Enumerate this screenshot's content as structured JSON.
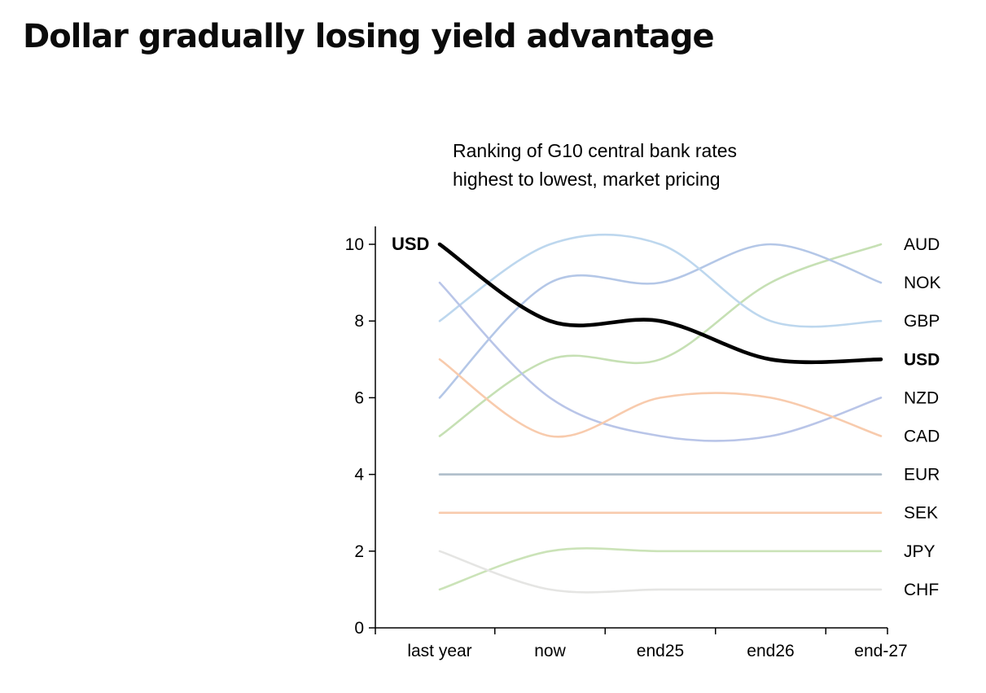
{
  "page": {
    "title": "Dollar gradually losing yield advantage",
    "background_color": "#ffffff"
  },
  "chart": {
    "subtitle": [
      "Ranking of G10 central bank rates",
      "highest to lowest, market pricing"
    ]
  },
  "chart_data": {
    "type": "line",
    "title": "Ranking of G10 central bank rates highest to lowest, market pricing",
    "categories": [
      "last year",
      "now",
      "end25",
      "end26",
      "end-27"
    ],
    "xlabel": "",
    "ylabel": "",
    "ylim": [
      0,
      10
    ],
    "yticks": [
      0,
      2,
      4,
      6,
      8,
      10
    ],
    "grid": false,
    "line_style": "smooth",
    "legend_position": "end-of-line-labels-right",
    "axis_color": "#000000",
    "series": [
      {
        "name": "USD",
        "values": [
          10,
          8,
          8,
          7,
          7
        ],
        "color": "#000000",
        "emphasis": true,
        "label_left": true,
        "label_right": true
      },
      {
        "name": "AUD",
        "values": [
          5,
          7,
          7,
          9,
          10
        ],
        "color": "#c6e0b4",
        "emphasis": false,
        "label_left": false,
        "label_right": true
      },
      {
        "name": "NOK",
        "values": [
          6,
          9,
          9,
          10,
          9
        ],
        "color": "#b4c7e7",
        "emphasis": false,
        "label_left": false,
        "label_right": true
      },
      {
        "name": "GBP",
        "values": [
          8,
          10,
          10,
          8,
          8
        ],
        "color": "#bdd7ee",
        "emphasis": false,
        "label_left": false,
        "label_right": true
      },
      {
        "name": "NZD",
        "values": [
          9,
          6,
          5,
          5,
          6
        ],
        "color": "#b9c5e8",
        "emphasis": false,
        "label_left": false,
        "label_right": true
      },
      {
        "name": "CAD",
        "values": [
          7,
          5,
          6,
          6,
          5
        ],
        "color": "#f8cbad",
        "emphasis": false,
        "label_left": false,
        "label_right": true
      },
      {
        "name": "EUR",
        "values": [
          4,
          4,
          4,
          4,
          4
        ],
        "color": "#aebdca",
        "emphasis": false,
        "label_left": false,
        "label_right": true
      },
      {
        "name": "SEK",
        "values": [
          3,
          3,
          3,
          3,
          3
        ],
        "color": "#f8cbad",
        "emphasis": false,
        "label_left": false,
        "label_right": true
      },
      {
        "name": "JPY",
        "values": [
          1,
          2,
          2,
          2,
          2
        ],
        "color": "#cbe3b8",
        "emphasis": false,
        "label_left": false,
        "label_right": true
      },
      {
        "name": "CHF",
        "values": [
          2,
          1,
          1,
          1,
          1
        ],
        "color": "#e5e5e3",
        "emphasis": false,
        "label_left": false,
        "label_right": true
      }
    ]
  }
}
